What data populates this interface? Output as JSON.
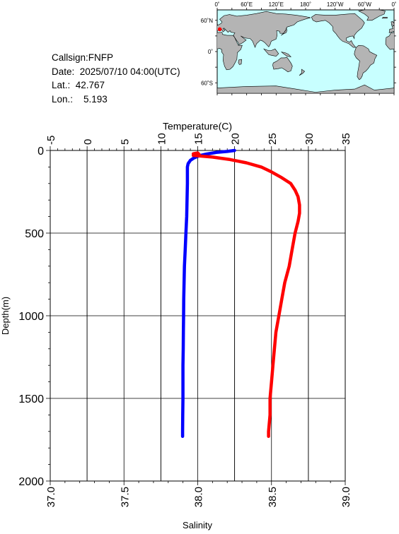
{
  "info": {
    "callsign": "Callsign:FNFP",
    "date": "Date:  2025/07/10 04:00(UTC)",
    "lat": "Lat.:  42.767",
    "lon": "Lon.:    5.193"
  },
  "map": {
    "lon_labels": [
      "0˚",
      "60˚E",
      "120˚E",
      "180˚",
      "120˚W",
      "60˚W",
      "0˚"
    ],
    "lat_labels": [
      "60˚N",
      "0˚",
      "60˚S"
    ],
    "station": {
      "lat": 42.767,
      "lon": 5.193
    },
    "ocean_color": "#c8ffff",
    "land_color": "#b4b4b4",
    "marker_color": "#ff0000"
  },
  "chart_data": {
    "type": "line",
    "title": "",
    "ylabel": "Depth(m)",
    "top_xlabel": "Temperature(C)",
    "bottom_xlabel": "Salinity",
    "ylim": [
      0,
      2000
    ],
    "yticks": [
      "0",
      "500",
      "1000",
      "1500",
      "2000"
    ],
    "temperature_xlim": [
      -5,
      35
    ],
    "temperature_ticks": [
      "-5",
      "0",
      "5",
      "10",
      "15",
      "20",
      "25",
      "30",
      "35"
    ],
    "salinity_xlim": [
      37.0,
      39.0
    ],
    "salinity_ticks": [
      "37.0",
      "37.5",
      "38.0",
      "38.5",
      "39.0"
    ],
    "grid": true,
    "series": [
      {
        "name": "Temperature",
        "axis": "top",
        "color": "#0000ff",
        "points": [
          [
            20.0,
            0
          ],
          [
            19.0,
            6
          ],
          [
            17.5,
            12
          ],
          [
            16.2,
            22
          ],
          [
            15.2,
            32
          ],
          [
            14.5,
            45
          ],
          [
            14.0,
            60
          ],
          [
            13.7,
            80
          ],
          [
            13.6,
            100
          ],
          [
            13.6,
            150
          ],
          [
            13.6,
            200
          ],
          [
            13.55,
            300
          ],
          [
            13.5,
            400
          ],
          [
            13.4,
            500
          ],
          [
            13.3,
            600
          ],
          [
            13.2,
            700
          ],
          [
            13.15,
            800
          ],
          [
            13.1,
            900
          ],
          [
            13.08,
            1000
          ],
          [
            13.05,
            1100
          ],
          [
            13.03,
            1200
          ],
          [
            13.0,
            1300
          ],
          [
            13.0,
            1400
          ],
          [
            13.0,
            1500
          ],
          [
            12.97,
            1600
          ],
          [
            12.95,
            1700
          ],
          [
            12.95,
            1730
          ]
        ]
      },
      {
        "name": "Salinity",
        "axis": "bottom",
        "color": "#ff0000",
        "points": [
          [
            37.97,
            20
          ],
          [
            38.0,
            15
          ],
          [
            38.01,
            25
          ],
          [
            37.97,
            30
          ],
          [
            38.1,
            40
          ],
          [
            38.22,
            55
          ],
          [
            38.33,
            75
          ],
          [
            38.43,
            100
          ],
          [
            38.5,
            130
          ],
          [
            38.57,
            165
          ],
          [
            38.63,
            200
          ],
          [
            38.66,
            240
          ],
          [
            38.68,
            280
          ],
          [
            38.69,
            330
          ],
          [
            38.69,
            380
          ],
          [
            38.68,
            430
          ],
          [
            38.66,
            500
          ],
          [
            38.64,
            600
          ],
          [
            38.62,
            700
          ],
          [
            38.59,
            800
          ],
          [
            38.57,
            900
          ],
          [
            38.55,
            1000
          ],
          [
            38.53,
            1100
          ],
          [
            38.52,
            1200
          ],
          [
            38.51,
            1300
          ],
          [
            38.5,
            1400
          ],
          [
            38.49,
            1500
          ],
          [
            38.49,
            1600
          ],
          [
            38.48,
            1700
          ],
          [
            38.48,
            1730
          ]
        ]
      }
    ]
  }
}
